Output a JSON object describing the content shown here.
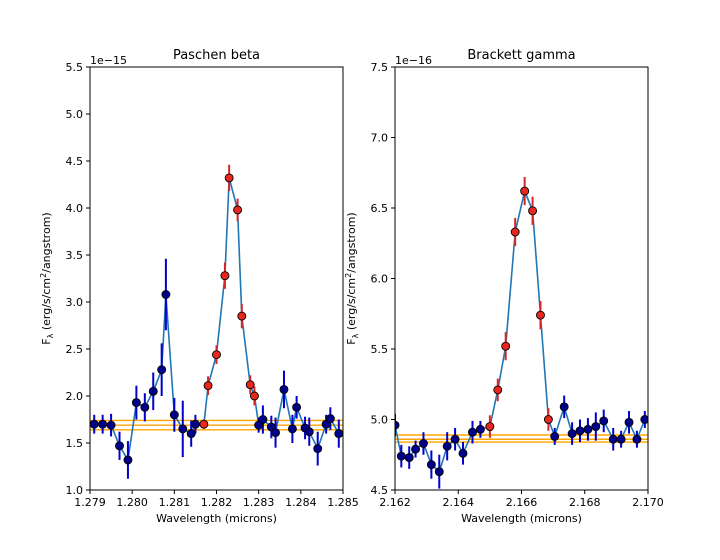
{
  "chart_data": [
    {
      "type": "scatter",
      "title": "Paschen beta",
      "xlabel": "Wavelength (microns)",
      "ylabel": "Fλ (erg/s/cm²/angstrom)",
      "ylabel_parts": [
        "F",
        "λ",
        " (erg/s/cm",
        "2",
        "/angstrom)"
      ],
      "offset_text": "1e−15",
      "xlim": [
        1.279,
        1.285
      ],
      "ylim": [
        1.0,
        5.5
      ],
      "xticks": [
        1.279,
        1.28,
        1.281,
        1.282,
        1.283,
        1.284,
        1.285
      ],
      "xtick_labels": [
        "1.279",
        "1.280",
        "1.281",
        "1.282",
        "1.283",
        "1.284",
        "1.285"
      ],
      "yticks": [
        1.0,
        1.5,
        2.0,
        2.5,
        3.0,
        3.5,
        4.0,
        4.5,
        5.0,
        5.5
      ],
      "ytick_labels": [
        "1.0",
        "1.5",
        "2.0",
        "2.5",
        "3.0",
        "3.5",
        "4.0",
        "4.5",
        "5.0",
        "5.5"
      ],
      "continuum_lines": [
        1.64,
        1.69,
        1.74
      ],
      "series": [
        {
          "name": "continuum",
          "x": [
            1.2791,
            1.2793,
            1.2795,
            1.2797,
            1.2799,
            1.2801,
            1.2803,
            1.2805,
            1.2807,
            1.2808,
            1.281,
            1.2812,
            1.2814,
            1.2815
          ],
          "y": [
            1.7,
            1.7,
            1.69,
            1.47,
            1.32,
            1.93,
            1.88,
            2.05,
            2.28,
            3.08,
            1.8,
            1.65,
            1.6,
            1.7
          ],
          "err": [
            0.1,
            0.1,
            0.12,
            0.15,
            0.2,
            0.18,
            0.15,
            0.2,
            0.28,
            0.38,
            0.18,
            0.3,
            0.14,
            0.1
          ]
        },
        {
          "name": "line",
          "x": [
            1.2817,
            1.2818,
            1.282,
            1.2822,
            1.2823,
            1.2825,
            1.2826,
            1.2828,
            1.2829
          ],
          "y": [
            1.7,
            2.11,
            2.44,
            3.28,
            4.32,
            3.98,
            2.85,
            2.12,
            2.0
          ],
          "err": [
            0.05,
            0.1,
            0.1,
            0.14,
            0.14,
            0.12,
            0.13,
            0.1,
            0.1
          ]
        },
        {
          "name": "continuum",
          "x": [
            1.283,
            1.2831,
            1.2833,
            1.2834,
            1.2836,
            1.2838,
            1.2839,
            1.2841,
            1.2842,
            1.2844,
            1.2846,
            1.2847,
            1.2849
          ],
          "y": [
            1.69,
            1.75,
            1.67,
            1.61,
            2.07,
            1.65,
            1.88,
            1.66,
            1.62,
            1.44,
            1.7,
            1.76,
            1.6
          ],
          "err": [
            0.08,
            0.15,
            0.12,
            0.16,
            0.2,
            0.15,
            0.12,
            0.12,
            0.15,
            0.18,
            0.1,
            0.12,
            0.15
          ]
        }
      ]
    },
    {
      "type": "scatter",
      "title": "Brackett gamma",
      "xlabel": "Wavelength (microns)",
      "ylabel": "Fλ (erg/s/cm²/angstrom)",
      "ylabel_parts": [
        "F",
        "λ",
        " (erg/s/cm",
        "2",
        "/angstrom)"
      ],
      "offset_text": "1e−16",
      "xlim": [
        2.162,
        2.17
      ],
      "ylim": [
        4.5,
        7.5
      ],
      "xticks": [
        2.162,
        2.164,
        2.166,
        2.168,
        2.17
      ],
      "xtick_labels": [
        "2.162",
        "2.164",
        "2.166",
        "2.168",
        "2.170"
      ],
      "yticks": [
        4.5,
        5.0,
        5.5,
        6.0,
        6.5,
        7.0,
        7.5
      ],
      "ytick_labels": [
        "4.5",
        "5.0",
        "5.5",
        "6.0",
        "6.5",
        "7.0",
        "7.5"
      ],
      "continuum_lines": [
        4.84,
        4.86,
        4.89
      ],
      "series": [
        {
          "name": "continuum",
          "x": [
            2.162,
            2.1622,
            2.16245,
            2.16265,
            2.1629,
            2.16315,
            2.1634,
            2.16365,
            2.1639,
            2.16415,
            2.16445,
            2.1647
          ],
          "y": [
            4.96,
            4.74,
            4.73,
            4.79,
            4.83,
            4.68,
            4.63,
            4.81,
            4.86,
            4.76,
            4.91,
            4.93
          ],
          "err": [
            0.08,
            0.08,
            0.08,
            0.06,
            0.08,
            0.1,
            0.12,
            0.1,
            0.08,
            0.08,
            0.08,
            0.06
          ]
        },
        {
          "name": "line",
          "x": [
            2.165,
            2.16525,
            2.1655,
            2.1658,
            2.1661,
            2.16635,
            2.1666,
            2.16685
          ],
          "y": [
            4.95,
            5.21,
            5.52,
            6.33,
            6.62,
            6.48,
            5.74,
            5.0
          ],
          "err": [
            0.08,
            0.08,
            0.1,
            0.1,
            0.1,
            0.1,
            0.1,
            0.08
          ]
        },
        {
          "name": "continuum",
          "x": [
            2.16705,
            2.16735,
            2.1676,
            2.16785,
            2.1681,
            2.16835,
            2.1686,
            2.1689,
            2.16915,
            2.1694,
            2.16965,
            2.1699
          ],
          "y": [
            4.88,
            5.09,
            4.9,
            4.92,
            4.93,
            4.95,
            4.99,
            4.86,
            4.86,
            4.98,
            4.86,
            5.0
          ],
          "err": [
            0.06,
            0.08,
            0.08,
            0.08,
            0.08,
            0.1,
            0.08,
            0.08,
            0.06,
            0.08,
            0.06,
            0.06
          ]
        }
      ]
    }
  ],
  "colors": {
    "curve": "#1f77b4",
    "continuum_marker": "#00008b",
    "continuum_err": "#0000cd",
    "line_marker": "#e8271f",
    "line_err": "#d62728",
    "band": "#ffa500",
    "axis": "#000000"
  }
}
